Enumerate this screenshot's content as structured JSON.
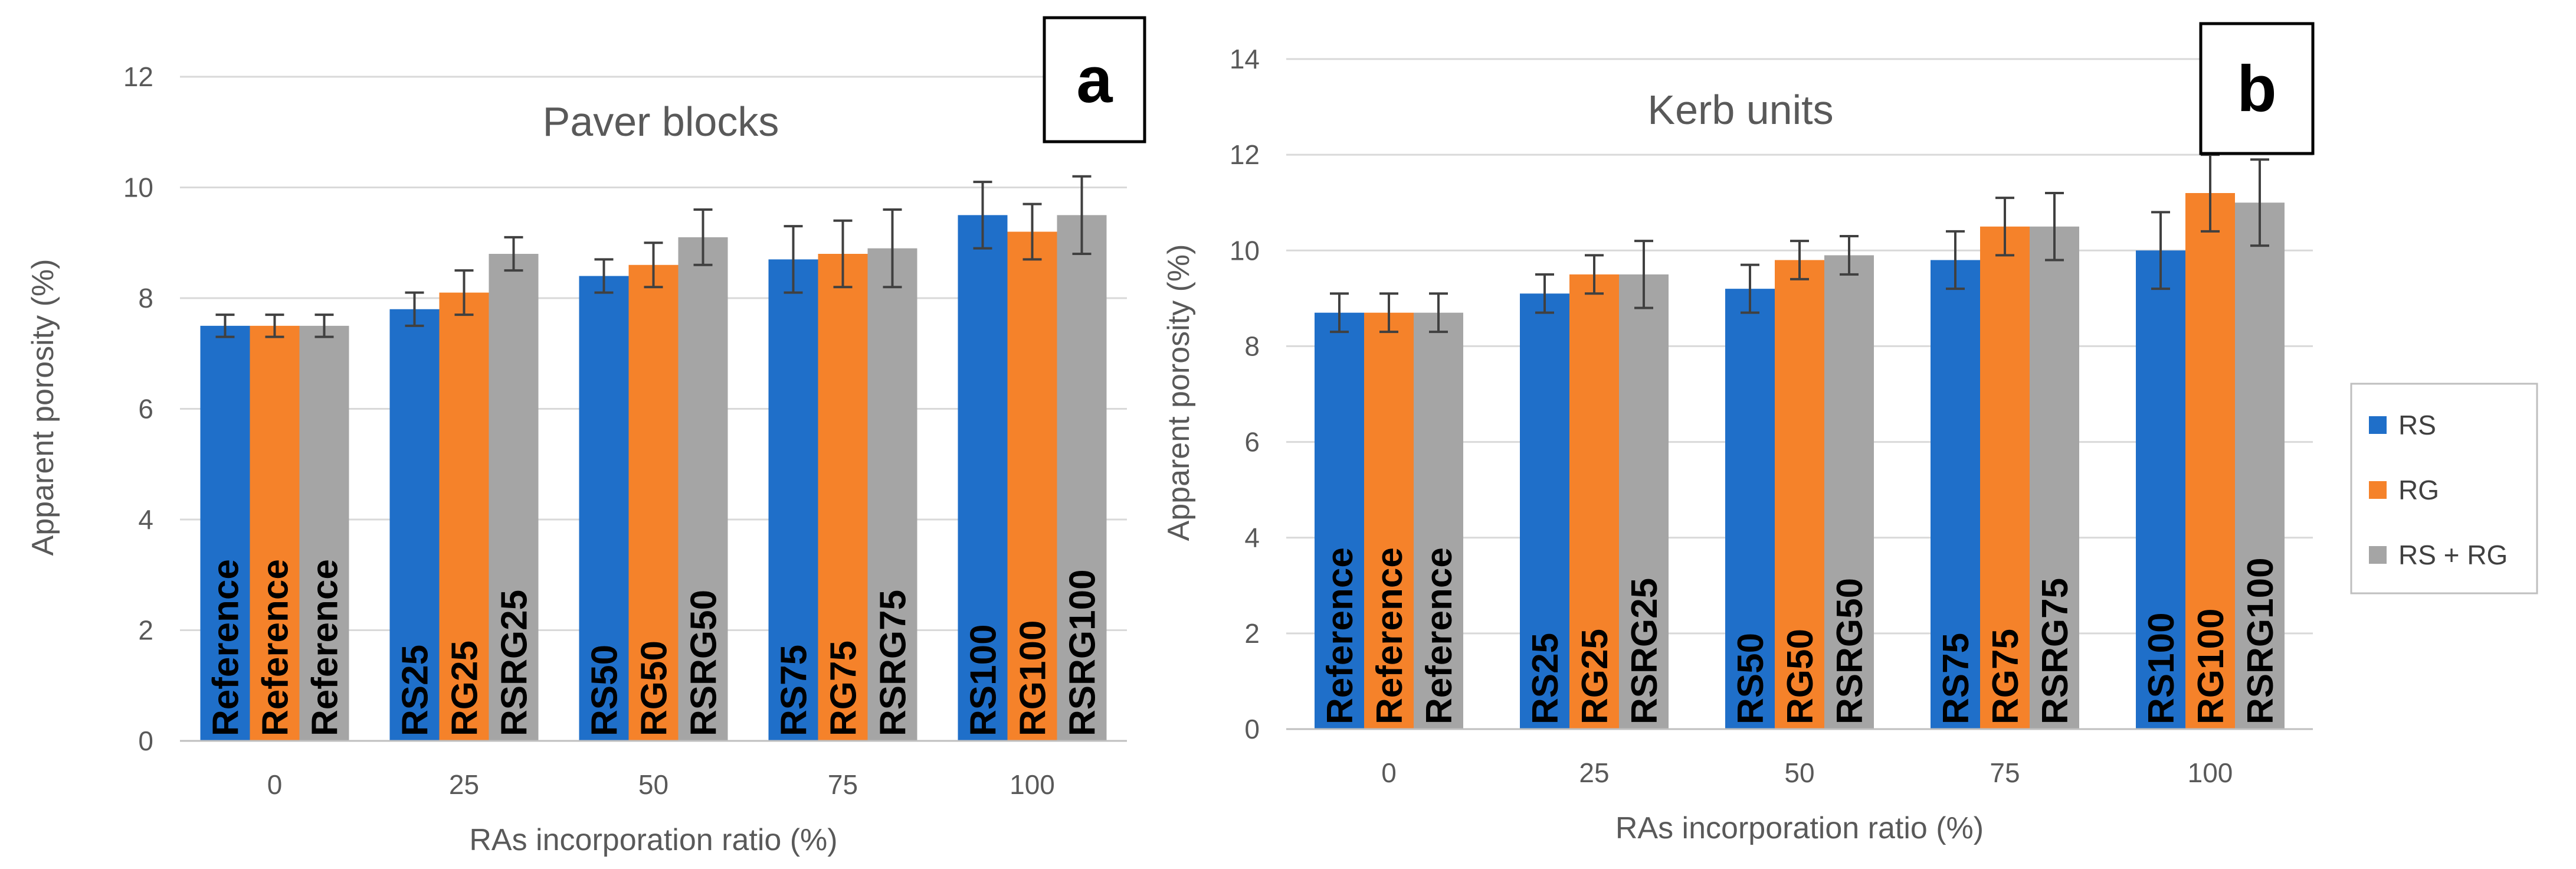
{
  "colors": {
    "RS": "#1F6FC9",
    "RG": "#F5822A",
    "RS + RG": "#A5A5A5",
    "grid": "#D9D9D9",
    "error": "#404040"
  },
  "legend": [
    "RS",
    "RG",
    "RS + RG"
  ],
  "chart_data": [
    {
      "type": "bar",
      "panel": "a",
      "title": "Paver blocks",
      "xlabel": "RAs incorporation ratio (%)",
      "ylabel": "Apparent porosity (%)",
      "ylim": [
        0,
        12
      ],
      "yticks": [
        0,
        2,
        4,
        6,
        8,
        10,
        12
      ],
      "categories": [
        "0",
        "25",
        "50",
        "75",
        "100"
      ],
      "series": [
        {
          "name": "RS",
          "values": [
            7.5,
            7.8,
            8.4,
            8.7,
            9.5
          ],
          "errors": [
            0.2,
            0.3,
            0.3,
            0.6,
            0.6
          ],
          "labels": [
            "Reference",
            "RS25",
            "RS50",
            "RS75",
            "RS100"
          ]
        },
        {
          "name": "RG",
          "values": [
            7.5,
            8.1,
            8.6,
            8.8,
            9.2
          ],
          "errors": [
            0.2,
            0.4,
            0.4,
            0.6,
            0.5
          ],
          "labels": [
            "Reference",
            "RG25",
            "RG50",
            "RG75",
            "RG100"
          ]
        },
        {
          "name": "RS + RG",
          "values": [
            7.5,
            8.8,
            9.1,
            8.9,
            9.5
          ],
          "errors": [
            0.2,
            0.3,
            0.5,
            0.7,
            0.7
          ],
          "labels": [
            "Reference",
            "RSRG25",
            "RSRG50",
            "RSRG75",
            "RSRG100"
          ]
        }
      ]
    },
    {
      "type": "bar",
      "panel": "b",
      "title": "Kerb units",
      "xlabel": "RAs incorporation ratio (%)",
      "ylabel": "Apparent porosity (%)",
      "ylim": [
        0,
        14
      ],
      "yticks": [
        0,
        2,
        4,
        6,
        8,
        10,
        12,
        14
      ],
      "categories": [
        "0",
        "25",
        "50",
        "75",
        "100"
      ],
      "series": [
        {
          "name": "RS",
          "values": [
            8.7,
            9.1,
            9.2,
            9.8,
            10.0
          ],
          "errors": [
            0.4,
            0.4,
            0.5,
            0.6,
            0.8
          ],
          "labels": [
            "Reference",
            "RS25",
            "RS50",
            "RS75",
            "RS100"
          ]
        },
        {
          "name": "RG",
          "values": [
            8.7,
            9.5,
            9.8,
            10.5,
            11.2
          ],
          "errors": [
            0.4,
            0.4,
            0.4,
            0.6,
            0.8
          ],
          "labels": [
            "Reference",
            "RG25",
            "RG50",
            "RG75",
            "RG100"
          ]
        },
        {
          "name": "RS + RG",
          "values": [
            8.7,
            9.5,
            9.9,
            10.5,
            11.0
          ],
          "errors": [
            0.4,
            0.7,
            0.4,
            0.7,
            0.9
          ],
          "labels": [
            "Reference",
            "RSRG25",
            "RSRG50",
            "RSRG75",
            "RSRG100"
          ]
        }
      ]
    }
  ]
}
